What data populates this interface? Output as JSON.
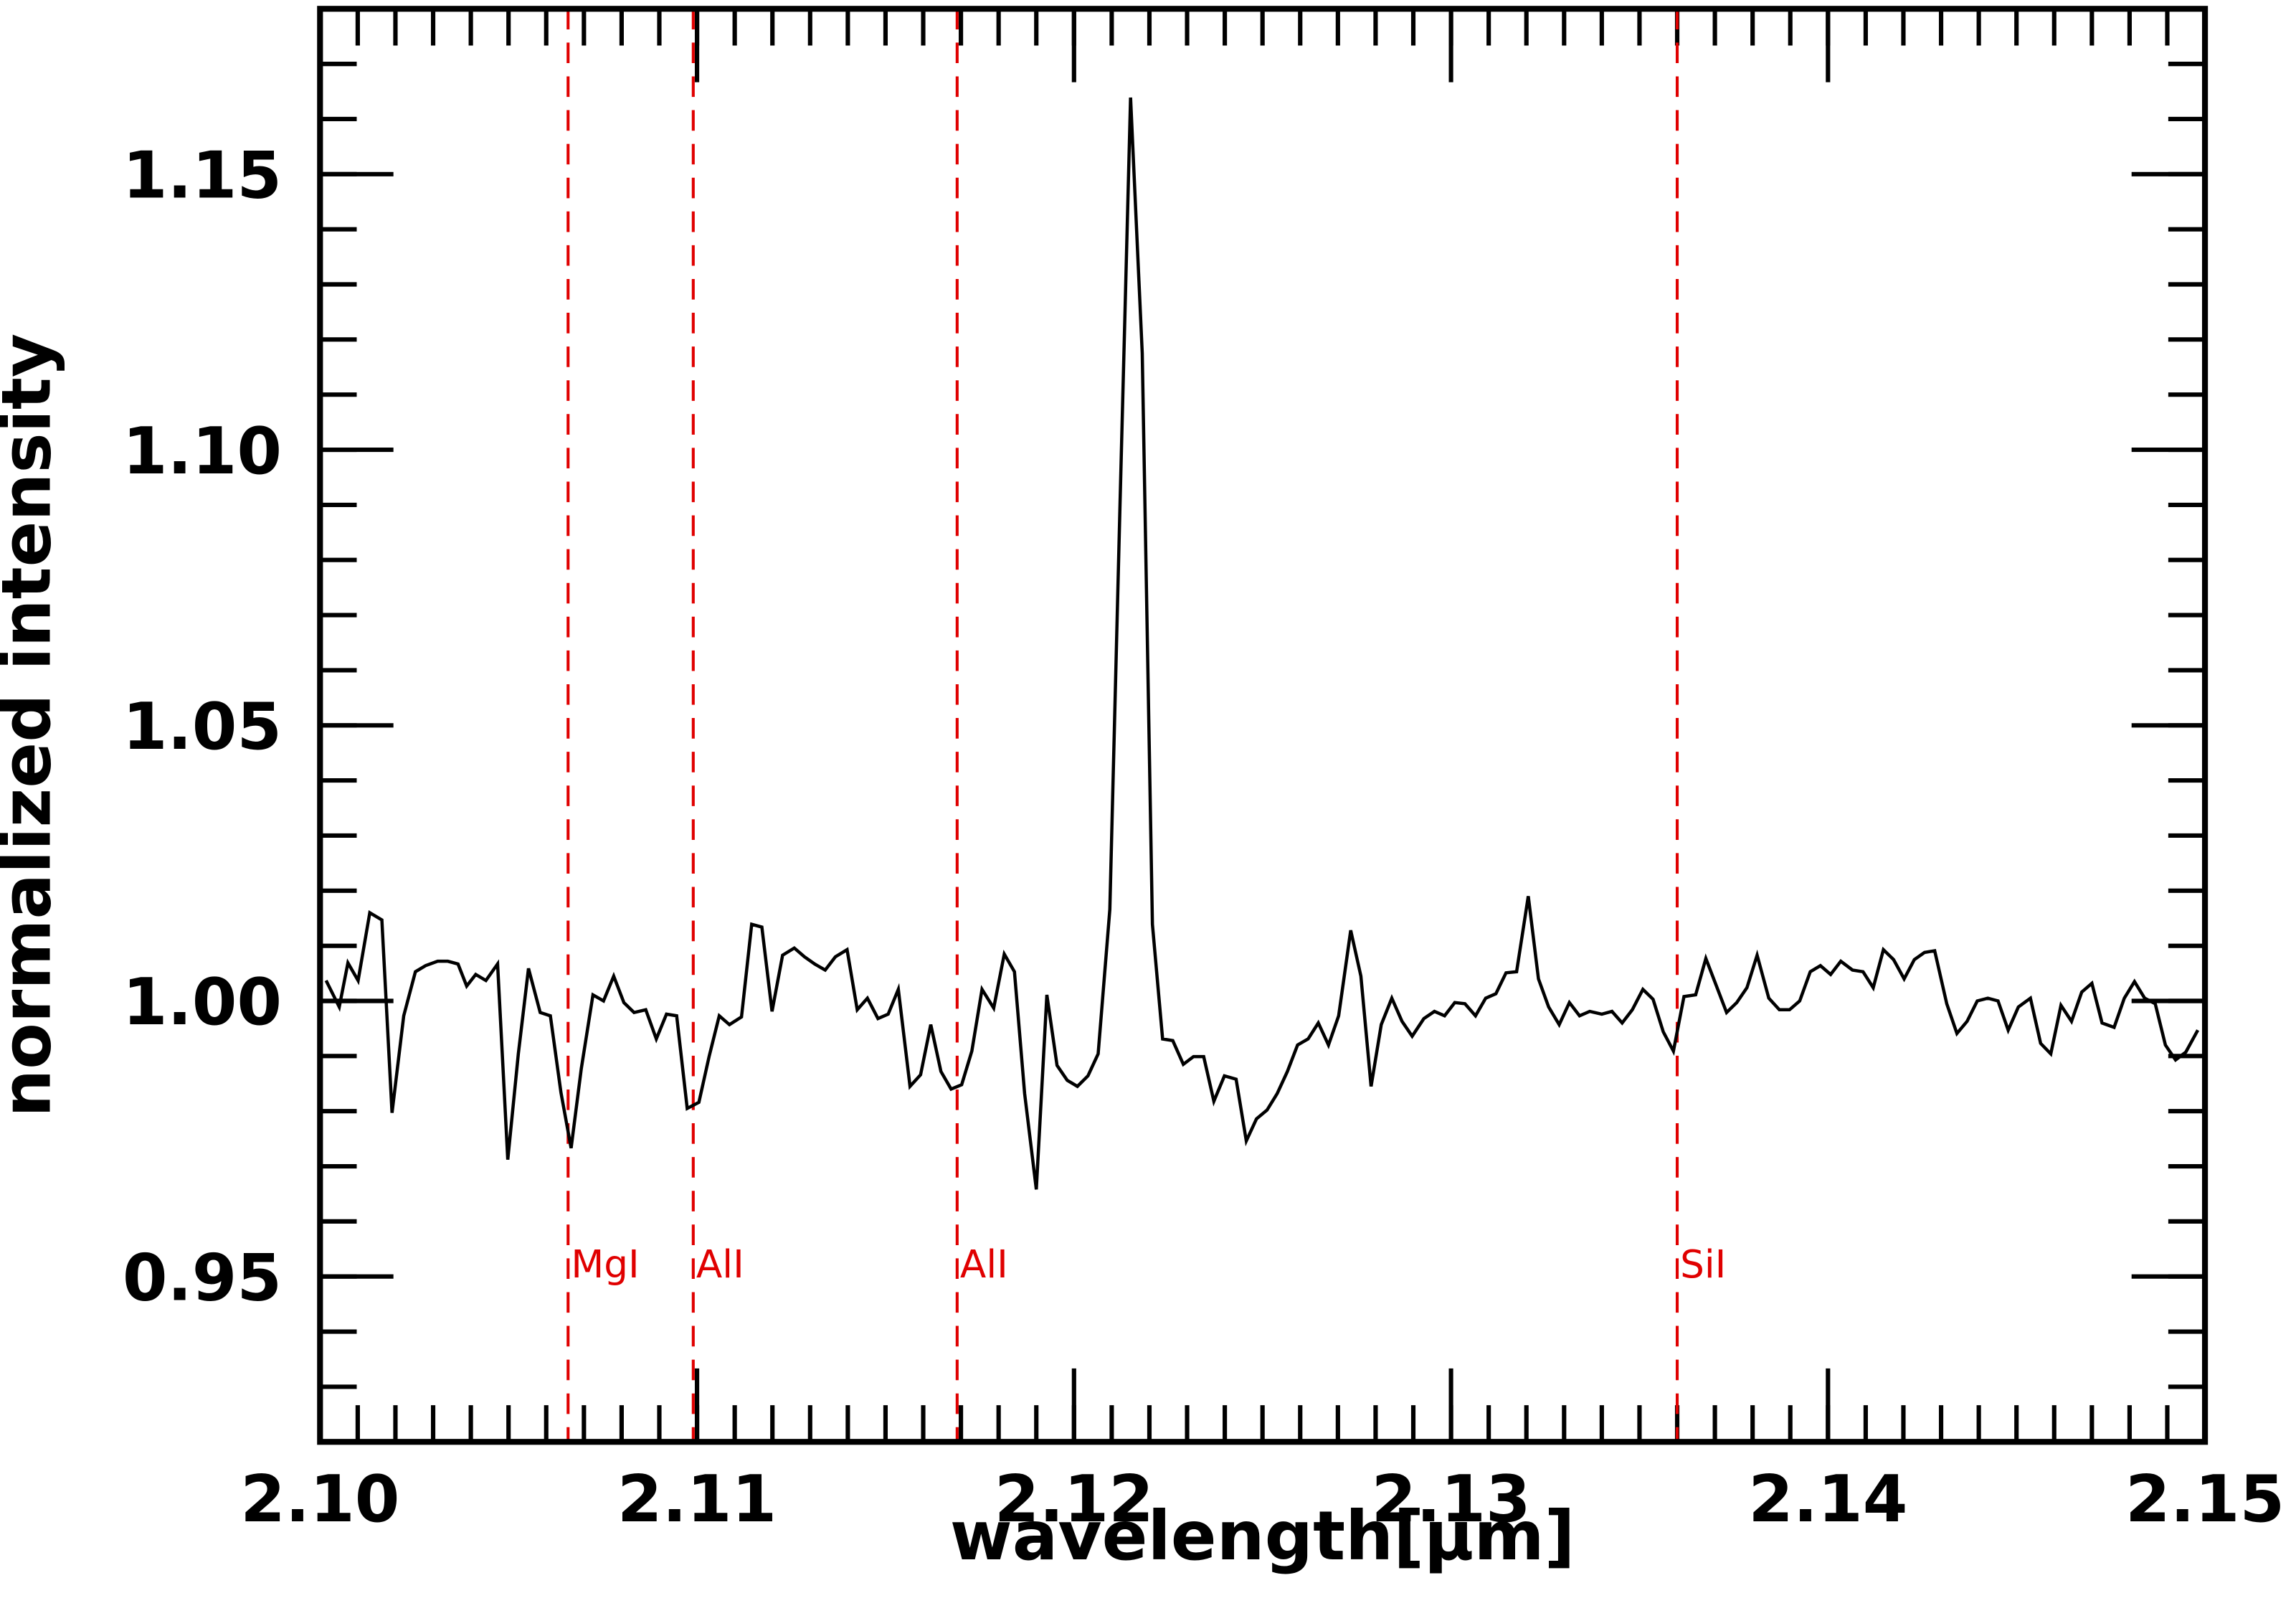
{
  "chart_data": {
    "type": "line",
    "xlabel": "wavelength[μm]",
    "ylabel": "normalized intensity",
    "xlim": [
      2.1,
      2.15
    ],
    "ylim": [
      0.92,
      1.18
    ],
    "xticks": [
      {
        "value": 2.1,
        "label": "2.10"
      },
      2.11,
      2.12,
      2.13,
      2.14,
      2.15
    ],
    "yticks": [
      0.95,
      {
        "value": 1.0,
        "label": "1.00"
      },
      1.05,
      {
        "value": 1.1,
        "label": "1.10"
      },
      1.15
    ],
    "xminor": 0.001,
    "yminor": 0.01,
    "grid": false,
    "lines": [
      {
        "x": 2.10658,
        "label": "MgI"
      },
      {
        "x": 2.1099,
        "label": "AlI"
      },
      {
        "x": 2.1169,
        "label": "AlI"
      },
      {
        "x": 2.136,
        "label": "SiI"
      }
    ],
    "line_color": "#e00000",
    "series": [
      {
        "color": "#000000",
        "x": [
          2.10016,
          2.10051,
          2.10074,
          2.10101,
          2.10132,
          2.10164,
          2.10191,
          2.10222,
          2.10253,
          2.1028,
          2.10312,
          2.10339,
          2.10366,
          2.10389,
          2.10413,
          2.1044,
          2.10471,
          2.10498,
          2.10526,
          2.10553,
          2.10584,
          2.10611,
          2.10639,
          2.10666,
          2.10693,
          2.10724,
          2.10752,
          2.10779,
          2.10806,
          2.10833,
          2.10864,
          2.10892,
          2.10919,
          2.10946,
          2.10974,
          2.11005,
          2.11032,
          2.11059,
          2.11086,
          2.11118,
          2.11145,
          2.11172,
          2.11199,
          2.11227,
          2.11258,
          2.11285,
          2.11312,
          2.1134,
          2.11367,
          2.11398,
          2.11425,
          2.11452,
          2.1148,
          2.11507,
          2.11534,
          2.11565,
          2.11593,
          2.1162,
          2.11647,
          2.11674,
          2.11702,
          2.11729,
          2.11756,
          2.11787,
          2.11815,
          2.11842,
          2.11869,
          2.119,
          2.11928,
          2.11955,
          2.11982,
          2.12009,
          2.12037,
          2.12064,
          2.12095,
          2.12122,
          2.1215,
          2.12181,
          2.12208,
          2.12235,
          2.12262,
          2.1229,
          2.12317,
          2.12344,
          2.12371,
          2.12399,
          2.1243,
          2.12457,
          2.12484,
          2.12512,
          2.12539,
          2.12566,
          2.12593,
          2.12621,
          2.12648,
          2.12675,
          2.12702,
          2.12734,
          2.12761,
          2.12788,
          2.12815,
          2.12843,
          2.1287,
          2.12897,
          2.12928,
          2.12956,
          2.12983,
          2.1301,
          2.13037,
          2.13065,
          2.13092,
          2.13119,
          2.13146,
          2.13174,
          2.13205,
          2.13232,
          2.13259,
          2.13287,
          2.13314,
          2.13341,
          2.13368,
          2.134,
          2.13427,
          2.13454,
          2.13481,
          2.13509,
          2.13536,
          2.13563,
          2.1359,
          2.13618,
          2.13649,
          2.13676,
          2.13703,
          2.13731,
          2.13758,
          2.13785,
          2.13812,
          2.13843,
          2.13871,
          2.13898,
          2.13925,
          2.13953,
          2.1398,
          2.14007,
          2.14034,
          2.14065,
          2.14093,
          2.1412,
          2.14147,
          2.14174,
          2.14202,
          2.14229,
          2.14256,
          2.14283,
          2.14315,
          2.14342,
          2.14369,
          2.14396,
          2.14424,
          2.14451,
          2.14478,
          2.14505,
          2.14537,
          2.14564,
          2.14591,
          2.14618,
          2.14646,
          2.14673,
          2.147,
          2.14727,
          2.14759,
          2.14786,
          2.14813,
          2.1484,
          2.14868,
          2.14895,
          2.14922,
          2.14949,
          2.14981
        ],
        "values": [
          1.0037,
          0.9989,
          1.0069,
          1.0037,
          1.016,
          1.0147,
          0.9797,
          0.9973,
          1.0053,
          1.0064,
          1.0072,
          1.0072,
          1.0067,
          1.0027,
          1.0048,
          1.0037,
          1.0067,
          0.9712,
          0.9904,
          1.0059,
          0.9979,
          0.9973,
          0.9834,
          0.9733,
          0.9877,
          1.0011,
          1.0,
          1.0045,
          0.9997,
          0.9979,
          0.9984,
          0.9931,
          0.9976,
          0.9973,
          0.9805,
          0.9816,
          0.9899,
          0.9973,
          0.9957,
          0.9971,
          1.0139,
          1.0134,
          0.9981,
          1.0083,
          1.0096,
          1.008,
          1.0067,
          1.0056,
          1.008,
          1.0093,
          0.9984,
          1.0005,
          0.9968,
          0.9976,
          1.0021,
          0.9845,
          0.9866,
          0.9957,
          0.9872,
          0.984,
          0.9848,
          0.9909,
          1.0021,
          0.9987,
          1.0085,
          1.0053,
          0.9832,
          0.9658,
          1.0011,
          0.9883,
          0.9856,
          0.9845,
          0.9864,
          0.9904,
          1.0166,
          1.09,
          1.1639,
          1.1175,
          1.0139,
          0.9931,
          0.9928,
          0.9885,
          0.9899,
          0.9899,
          0.9818,
          0.9864,
          0.9858,
          0.9746,
          0.9786,
          0.9802,
          0.9832,
          0.9872,
          0.992,
          0.9931,
          0.996,
          0.992,
          0.9973,
          1.0128,
          1.0045,
          0.9845,
          0.9957,
          1.0005,
          0.9963,
          0.9936,
          0.9968,
          0.9981,
          0.9973,
          0.9997,
          0.9995,
          0.9973,
          1.0005,
          1.0013,
          1.0051,
          1.0053,
          1.019,
          1.004,
          0.9989,
          0.9957,
          0.9997,
          0.9973,
          0.9981,
          0.9976,
          0.9981,
          0.996,
          0.9984,
          1.0021,
          1.0003,
          0.9944,
          0.9909,
          1.0008,
          1.0011,
          1.0077,
          1.0029,
          0.9979,
          0.9997,
          1.0024,
          1.0083,
          1.0005,
          0.9984,
          0.9984,
          1.0,
          1.0053,
          1.0064,
          1.0048,
          1.0072,
          1.0056,
          1.0053,
          1.0024,
          1.0093,
          1.0075,
          1.004,
          1.0075,
          1.0088,
          1.0091,
          0.9995,
          0.9941,
          0.9963,
          1.0,
          1.0005,
          1.0,
          0.9947,
          0.9989,
          1.0005,
          0.9923,
          0.9904,
          0.9992,
          0.9963,
          1.0016,
          1.0032,
          0.996,
          0.9952,
          1.0005,
          1.0035,
          1.0005,
          0.9995,
          0.992,
          0.9893,
          0.9907,
          0.9947
        ]
      }
    ]
  }
}
